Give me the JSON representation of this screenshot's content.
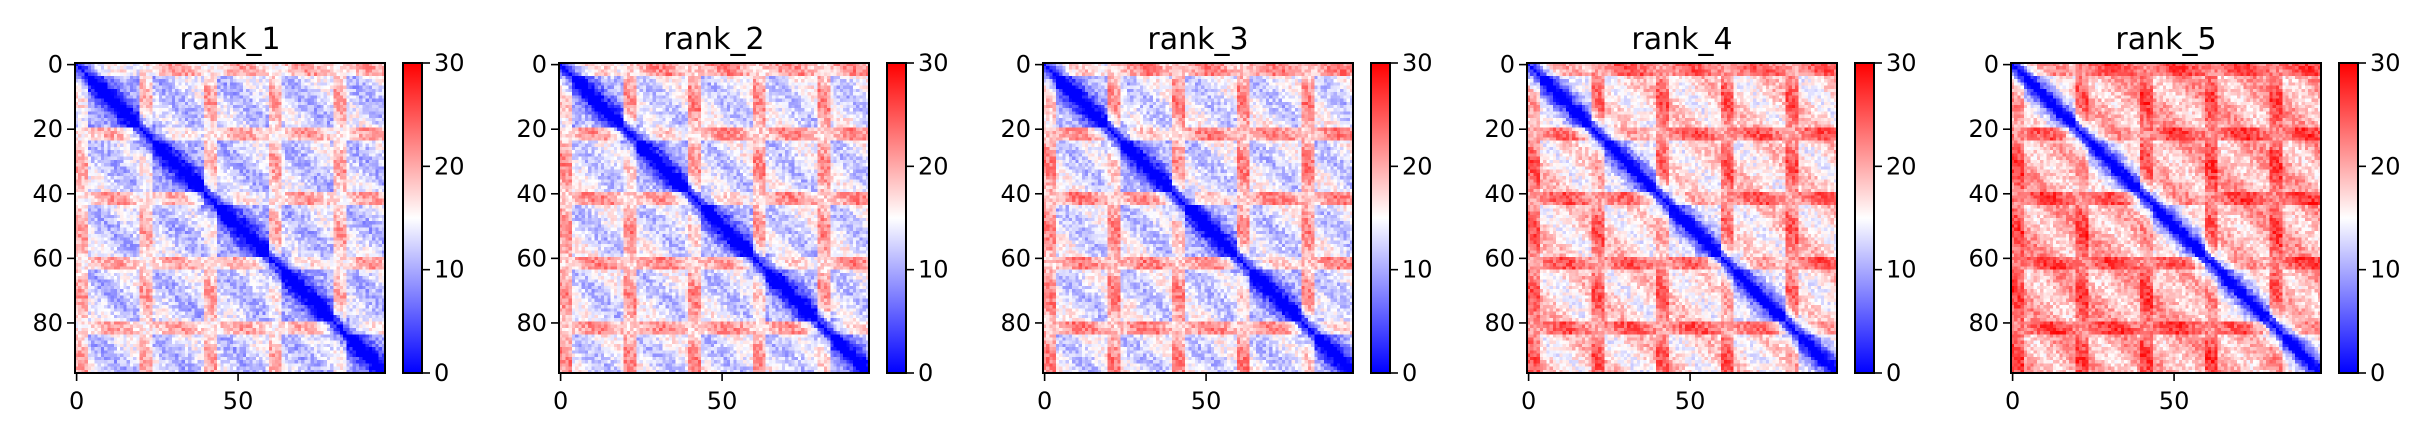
{
  "colorscale": {
    "low": "#0000ff",
    "mid": "#ffffff",
    "high": "#ff0000",
    "vmin": 0,
    "vmax": 30,
    "ticks": [
      "0",
      "10",
      "20",
      "30"
    ]
  },
  "chart_data": [
    {
      "type": "heatmap",
      "title": "rank_1",
      "xlabel": "",
      "ylabel": "",
      "x_ticks": [
        "0",
        "50"
      ],
      "y_ticks": [
        "0",
        "20",
        "40",
        "60",
        "80"
      ],
      "xlim": [
        0,
        96
      ],
      "ylim": [
        96,
        0
      ],
      "size": 96,
      "grid": false,
      "colorbar": true,
      "colorbar_ticks": [
        "0",
        "10",
        "20",
        "30"
      ],
      "pattern": {
        "base": 12.5,
        "block_period": 20,
        "off_block_amplitude": 6,
        "dominant_range": "red-blue mixed, mostly blue"
      }
    },
    {
      "type": "heatmap",
      "title": "rank_2",
      "xlabel": "",
      "ylabel": "",
      "x_ticks": [
        "0",
        "50"
      ],
      "y_ticks": [
        "0",
        "20",
        "40",
        "60",
        "80"
      ],
      "xlim": [
        0,
        96
      ],
      "ylim": [
        96,
        0
      ],
      "size": 96,
      "grid": false,
      "colorbar": true,
      "colorbar_ticks": [
        "0",
        "10",
        "20",
        "30"
      ],
      "pattern": {
        "base": 13.5,
        "block_period": 20,
        "off_block_amplitude": 6.5,
        "dominant_range": "mostly blue with red bands"
      }
    },
    {
      "type": "heatmap",
      "title": "rank_3",
      "xlabel": "",
      "ylabel": "",
      "x_ticks": [
        "0",
        "50"
      ],
      "y_ticks": [
        "0",
        "20",
        "40",
        "60",
        "80"
      ],
      "xlim": [
        0,
        96
      ],
      "ylim": [
        96,
        0
      ],
      "size": 96,
      "grid": false,
      "colorbar": true,
      "colorbar_ticks": [
        "0",
        "10",
        "20",
        "30"
      ],
      "pattern": {
        "base": 13.5,
        "block_period": 20,
        "off_block_amplitude": 7,
        "dominant_range": "mixed blue and white"
      }
    },
    {
      "type": "heatmap",
      "title": "rank_4",
      "xlabel": "",
      "ylabel": "",
      "x_ticks": [
        "0",
        "50"
      ],
      "y_ticks": [
        "0",
        "20",
        "40",
        "60",
        "80"
      ],
      "xlim": [
        0,
        96
      ],
      "ylim": [
        96,
        0
      ],
      "size": 96,
      "grid": false,
      "colorbar": true,
      "colorbar_ticks": [
        "0",
        "10",
        "20",
        "30"
      ],
      "pattern": {
        "base": 17,
        "block_period": 20,
        "off_block_amplitude": 6,
        "dominant_range": "mostly light red with blue blocks"
      }
    },
    {
      "type": "heatmap",
      "title": "rank_5",
      "xlabel": "",
      "ylabel": "",
      "x_ticks": [
        "0",
        "50"
      ],
      "y_ticks": [
        "0",
        "20",
        "40",
        "60",
        "80"
      ],
      "xlim": [
        0,
        96
      ],
      "ylim": [
        96,
        0
      ],
      "size": 96,
      "grid": false,
      "colorbar": true,
      "colorbar_ticks": [
        "0",
        "10",
        "20",
        "30"
      ],
      "pattern": {
        "base": 19.5,
        "block_period": 20,
        "off_block_amplitude": 5,
        "dominant_range": "mostly red with blue near diagonal"
      }
    }
  ]
}
